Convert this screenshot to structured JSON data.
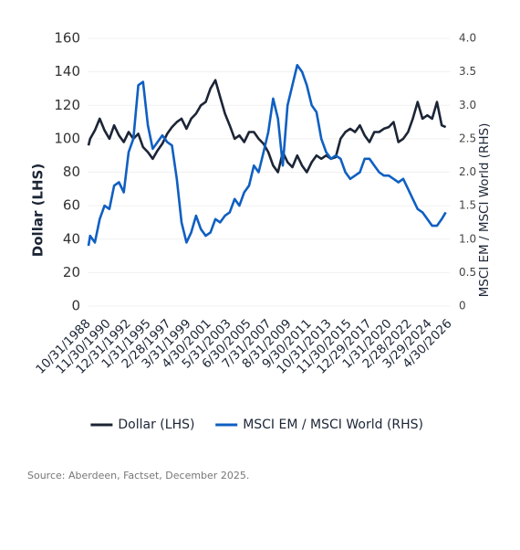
{
  "chart_data": {
    "type": "line",
    "y_label": "Dollar (LHS)",
    "y2_label": "MSCI EM / MSCI World (RHS)",
    "source": "Source: Aberdeen, Factset, December 2025.",
    "grid": true,
    "legend": "bottom",
    "x": [
      "10/31/1988",
      "12/31/1988",
      "6/30/1989",
      "12/31/1989",
      "6/30/1990",
      "12/31/1990",
      "6/30/1991",
      "12/31/1991",
      "6/30/1992",
      "12/31/1992",
      "6/30/1993",
      "12/31/1993",
      "6/30/1994",
      "12/31/1994",
      "6/30/1995",
      "12/31/1995",
      "6/30/1996",
      "12/31/1996",
      "6/30/1997",
      "12/31/1997",
      "6/30/1998",
      "12/31/1998",
      "6/30/1999",
      "12/31/1999",
      "6/30/2000",
      "12/31/2000",
      "6/30/2001",
      "12/31/2001",
      "6/30/2002",
      "12/31/2002",
      "6/30/2003",
      "12/31/2003",
      "6/30/2004",
      "12/31/2004",
      "6/30/2005",
      "12/31/2005",
      "6/30/2006",
      "12/31/2006",
      "6/30/2007",
      "12/31/2007",
      "6/30/2008",
      "12/31/2008",
      "6/30/2009",
      "12/31/2009",
      "6/30/2010",
      "12/31/2010",
      "6/30/2011",
      "12/31/2011",
      "6/30/2012",
      "12/31/2012",
      "6/30/2013",
      "12/31/2013",
      "6/30/2014",
      "12/31/2014",
      "6/30/2015",
      "12/31/2015",
      "6/30/2016",
      "12/31/2016",
      "6/30/2017",
      "12/31/2017",
      "6/30/2018",
      "12/31/2018",
      "6/30/2019",
      "12/31/2019",
      "6/30/2020",
      "12/31/2020",
      "6/30/2021",
      "12/31/2021",
      "6/30/2022",
      "12/31/2022",
      "6/30/2023",
      "12/31/2023",
      "6/30/2024",
      "12/31/2024",
      "6/30/2025",
      "11/28/2025"
    ],
    "xlim": [
      "10/31/1988",
      "4/30/2026"
    ],
    "xticks": [
      "10/31/1988",
      "11/30/1990",
      "12/31/1992",
      "1/31/1995",
      "2/28/1997",
      "3/31/1999",
      "4/30/2001",
      "5/31/2003",
      "6/30/2005",
      "7/31/2007",
      "8/31/2009",
      "9/30/2011",
      "10/31/2013",
      "11/30/2015",
      "12/29/2017",
      "1/31/2020",
      "2/28/2022",
      "3/29/2024",
      "4/30/2026"
    ],
    "ylim": [
      0,
      160
    ],
    "yticks": [
      0,
      20,
      40,
      60,
      80,
      100,
      120,
      140,
      160
    ],
    "y2lim": [
      0,
      4
    ],
    "y2ticks": [
      0,
      0.5,
      {
        "value": 1,
        "label": "1.0"
      },
      1.5,
      {
        "value": 2,
        "label": "2.0"
      },
      2.5,
      {
        "value": 3,
        "label": "3.0"
      },
      3.5,
      {
        "value": 4,
        "label": "4.0"
      }
    ],
    "series": [
      {
        "name": "Dollar (LHS)",
        "color": "#1c2536",
        "values": [
          96,
          100,
          105,
          112,
          105,
          100,
          108,
          102,
          98,
          104,
          100,
          103,
          95,
          92,
          88,
          93,
          97,
          103,
          107,
          110,
          112,
          106,
          112,
          115,
          120,
          122,
          130,
          135,
          125,
          115,
          108,
          100,
          102,
          98,
          104,
          104,
          100,
          97,
          92,
          84,
          80,
          92,
          86,
          83,
          90,
          84,
          80,
          86,
          90,
          88,
          90,
          88,
          89,
          100,
          104,
          106,
          104,
          108,
          102,
          98,
          104,
          104,
          106,
          107,
          110,
          98,
          100,
          104,
          112,
          122,
          112,
          114,
          112,
          122,
          108,
          107
        ]
      },
      {
        "name": "MSCI EM / MSCI World (RHS)",
        "color": "#0f5fc2",
        "axis": "y2",
        "values": [
          0.9,
          1.05,
          0.95,
          1.3,
          1.5,
          1.45,
          1.8,
          1.85,
          1.7,
          2.3,
          2.5,
          3.3,
          3.35,
          2.7,
          2.35,
          2.45,
          2.55,
          2.45,
          2.4,
          1.9,
          1.25,
          0.95,
          1.1,
          1.35,
          1.15,
          1.05,
          1.1,
          1.3,
          1.25,
          1.35,
          1.4,
          1.6,
          1.5,
          1.7,
          1.8,
          2.1,
          2.0,
          2.3,
          2.6,
          3.1,
          2.8,
          2.1,
          3.0,
          3.3,
          3.6,
          3.5,
          3.3,
          3.0,
          2.9,
          2.5,
          2.3,
          2.2,
          2.25,
          2.2,
          2.0,
          1.9,
          1.95,
          2.0,
          2.2,
          2.2,
          2.1,
          2.0,
          1.95,
          1.95,
          1.9,
          1.85,
          1.9,
          1.75,
          1.6,
          1.45,
          1.4,
          1.3,
          1.2,
          1.2,
          1.3,
          1.4
        ]
      }
    ]
  }
}
